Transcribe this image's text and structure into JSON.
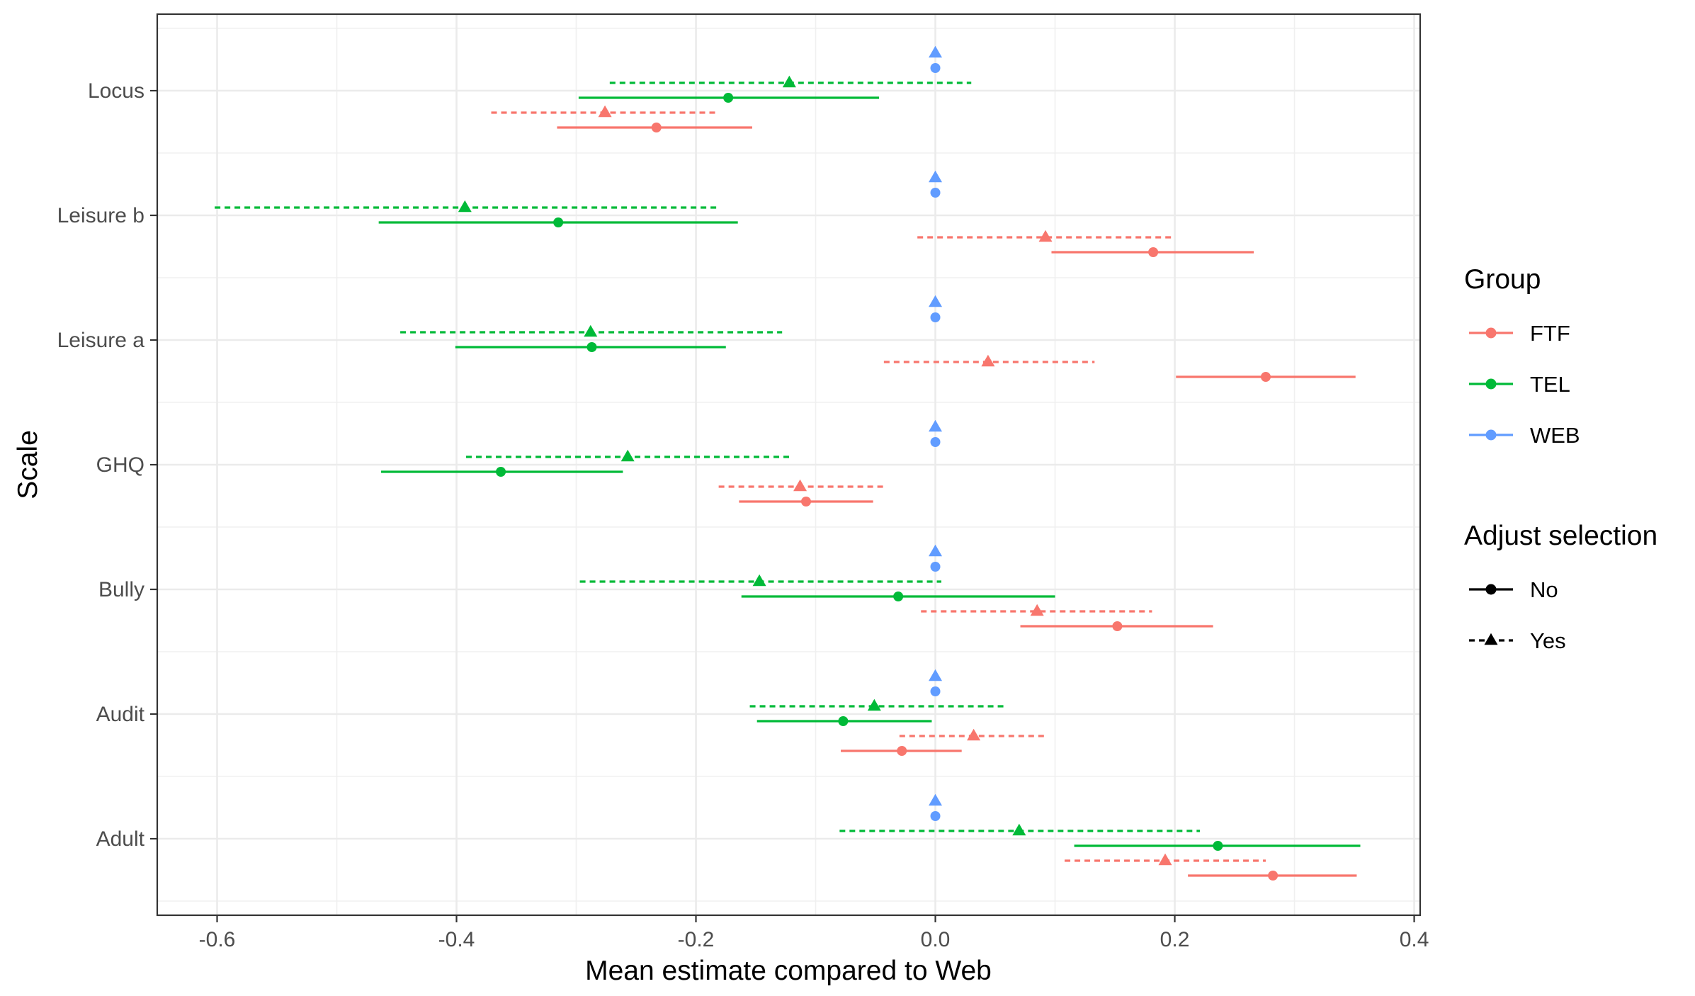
{
  "chart_data": {
    "type": "scatter",
    "subtype": "dot-and-whisker",
    "xlabel": "Mean estimate compared to Web",
    "ylabel": "Scale",
    "xlim": [
      -0.65,
      0.405
    ],
    "x_ticks": [
      -0.6,
      -0.4,
      -0.2,
      0.0,
      0.2,
      0.4
    ],
    "x_tick_labels": [
      "-0.6",
      "-0.4",
      "-0.2",
      "0.0",
      "0.2",
      "0.4"
    ],
    "categories": [
      "Locus",
      "Leisure b",
      "Leisure a",
      "GHQ",
      "Bully",
      "Audit",
      "Adult"
    ],
    "grid": true,
    "legend_position": "right",
    "groups": [
      {
        "name": "FTF",
        "color": "#F8766D"
      },
      {
        "name": "TEL",
        "color": "#00BA38"
      },
      {
        "name": "WEB",
        "color": "#619CFF"
      }
    ],
    "group_legend_title": "Group",
    "adjust_legend_title": "Adjust selection",
    "adjust_levels": [
      {
        "name": "No",
        "shape": "circle",
        "line": "solid"
      },
      {
        "name": "Yes",
        "shape": "triangle",
        "line": "dashed"
      }
    ],
    "series": [
      {
        "group": "WEB",
        "adjust": "Yes",
        "values": [
          {
            "scale": "Locus",
            "est": 0.0
          },
          {
            "scale": "Leisure b",
            "est": 0.0
          },
          {
            "scale": "Leisure a",
            "est": 0.0
          },
          {
            "scale": "GHQ",
            "est": 0.0
          },
          {
            "scale": "Bully",
            "est": 0.0
          },
          {
            "scale": "Audit",
            "est": 0.0
          },
          {
            "scale": "Adult",
            "est": 0.0
          }
        ]
      },
      {
        "group": "WEB",
        "adjust": "No",
        "values": [
          {
            "scale": "Locus",
            "est": 0.0
          },
          {
            "scale": "Leisure b",
            "est": 0.0
          },
          {
            "scale": "Leisure a",
            "est": 0.0
          },
          {
            "scale": "GHQ",
            "est": 0.0
          },
          {
            "scale": "Bully",
            "est": 0.0
          },
          {
            "scale": "Audit",
            "est": 0.0
          },
          {
            "scale": "Adult",
            "est": 0.0
          }
        ]
      },
      {
        "group": "TEL",
        "adjust": "Yes",
        "values": [
          {
            "scale": "Locus",
            "est": -0.122,
            "lo": -0.272,
            "hi": 0.03
          },
          {
            "scale": "Leisure b",
            "est": -0.393,
            "lo": -0.602,
            "hi": -0.18
          },
          {
            "scale": "Leisure a",
            "est": -0.288,
            "lo": -0.447,
            "hi": -0.128
          },
          {
            "scale": "GHQ",
            "est": -0.257,
            "lo": -0.392,
            "hi": -0.12
          },
          {
            "scale": "Bully",
            "est": -0.147,
            "lo": -0.297,
            "hi": 0.005
          },
          {
            "scale": "Audit",
            "est": -0.051,
            "lo": -0.155,
            "hi": 0.06
          },
          {
            "scale": "Adult",
            "est": 0.07,
            "lo": -0.08,
            "hi": 0.221
          }
        ]
      },
      {
        "group": "TEL",
        "adjust": "No",
        "values": [
          {
            "scale": "Locus",
            "est": -0.173,
            "lo": -0.298,
            "hi": -0.047
          },
          {
            "scale": "Leisure b",
            "est": -0.315,
            "lo": -0.465,
            "hi": -0.165
          },
          {
            "scale": "Leisure a",
            "est": -0.287,
            "lo": -0.401,
            "hi": -0.175
          },
          {
            "scale": "GHQ",
            "est": -0.363,
            "lo": -0.463,
            "hi": -0.261
          },
          {
            "scale": "Bully",
            "est": -0.031,
            "lo": -0.162,
            "hi": 0.1
          },
          {
            "scale": "Audit",
            "est": -0.077,
            "lo": -0.149,
            "hi": -0.003
          },
          {
            "scale": "Adult",
            "est": 0.236,
            "lo": 0.116,
            "hi": 0.355
          }
        ]
      },
      {
        "group": "FTF",
        "adjust": "Yes",
        "values": [
          {
            "scale": "Locus",
            "est": -0.276,
            "lo": -0.371,
            "hi": -0.181
          },
          {
            "scale": "Leisure b",
            "est": 0.092,
            "lo": -0.015,
            "hi": 0.197
          },
          {
            "scale": "Leisure a",
            "est": 0.044,
            "lo": -0.043,
            "hi": 0.133
          },
          {
            "scale": "GHQ",
            "est": -0.113,
            "lo": -0.181,
            "hi": -0.043
          },
          {
            "scale": "Bully",
            "est": 0.085,
            "lo": -0.012,
            "hi": 0.181
          },
          {
            "scale": "Audit",
            "est": 0.032,
            "lo": -0.03,
            "hi": 0.094
          },
          {
            "scale": "Adult",
            "est": 0.192,
            "lo": 0.108,
            "hi": 0.276
          }
        ]
      },
      {
        "group": "FTF",
        "adjust": "No",
        "values": [
          {
            "scale": "Locus",
            "est": -0.233,
            "lo": -0.316,
            "hi": -0.153
          },
          {
            "scale": "Leisure b",
            "est": 0.182,
            "lo": 0.097,
            "hi": 0.266
          },
          {
            "scale": "Leisure a",
            "est": 0.276,
            "lo": 0.201,
            "hi": 0.351
          },
          {
            "scale": "GHQ",
            "est": -0.108,
            "lo": -0.164,
            "hi": -0.052
          },
          {
            "scale": "Bully",
            "est": 0.152,
            "lo": 0.071,
            "hi": 0.232
          },
          {
            "scale": "Audit",
            "est": -0.028,
            "lo": -0.079,
            "hi": 0.022
          },
          {
            "scale": "Adult",
            "est": 0.282,
            "lo": 0.211,
            "hi": 0.352
          }
        ]
      }
    ]
  }
}
